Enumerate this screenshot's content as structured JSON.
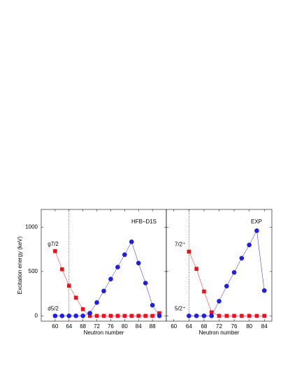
{
  "chart_data": [
    {
      "type": "line",
      "title": "HFB–D1S",
      "x_label": "Neutron number",
      "y_label": "Excitation energy (keV)",
      "xlim": [
        56,
        92
      ],
      "xticks": [
        60,
        64,
        68,
        72,
        76,
        80,
        84,
        88
      ],
      "ylim": [
        -60,
        1200
      ],
      "yticks": [
        0,
        500,
        1000
      ],
      "vline": 64,
      "x": [
        60,
        62,
        64,
        66,
        68,
        70,
        72,
        74,
        76,
        78,
        80,
        82,
        84,
        86,
        88,
        90
      ],
      "series": [
        {
          "name": "g7/2",
          "color": "#e8141c",
          "marker": "square",
          "values": [
            730,
            525,
            340,
            205,
            75,
            0,
            0,
            0,
            0,
            0,
            0,
            0,
            0,
            0,
            0,
            30
          ]
        },
        {
          "name": "d5/2",
          "color": "#1f1fe0",
          "marker": "circle",
          "values": [
            0,
            0,
            0,
            0,
            0,
            30,
            150,
            280,
            415,
            550,
            690,
            835,
            595,
            370,
            120,
            0
          ]
        }
      ]
    },
    {
      "type": "line",
      "title": "EXP",
      "x_label": "Neutron number",
      "xlim": [
        58,
        86
      ],
      "xticks": [
        60,
        64,
        68,
        72,
        76,
        80,
        84
      ],
      "ylim": [
        -60,
        1200
      ],
      "yticks": [
        0,
        500,
        1000
      ],
      "vline": 64,
      "x": [
        64,
        66,
        68,
        70,
        72,
        74,
        76,
        78,
        80,
        82,
        84
      ],
      "series": [
        {
          "name": "7/2⁺",
          "color": "#e8141c",
          "marker": "square",
          "values": [
            725,
            530,
            275,
            40,
            0,
            0,
            0,
            0,
            0,
            0,
            0
          ]
        },
        {
          "name": "5/2⁺",
          "color": "#1f1fe0",
          "marker": "circle",
          "values": [
            0,
            0,
            0,
            0,
            165,
            335,
            490,
            650,
            800,
            960,
            285
          ]
        }
      ]
    }
  ]
}
